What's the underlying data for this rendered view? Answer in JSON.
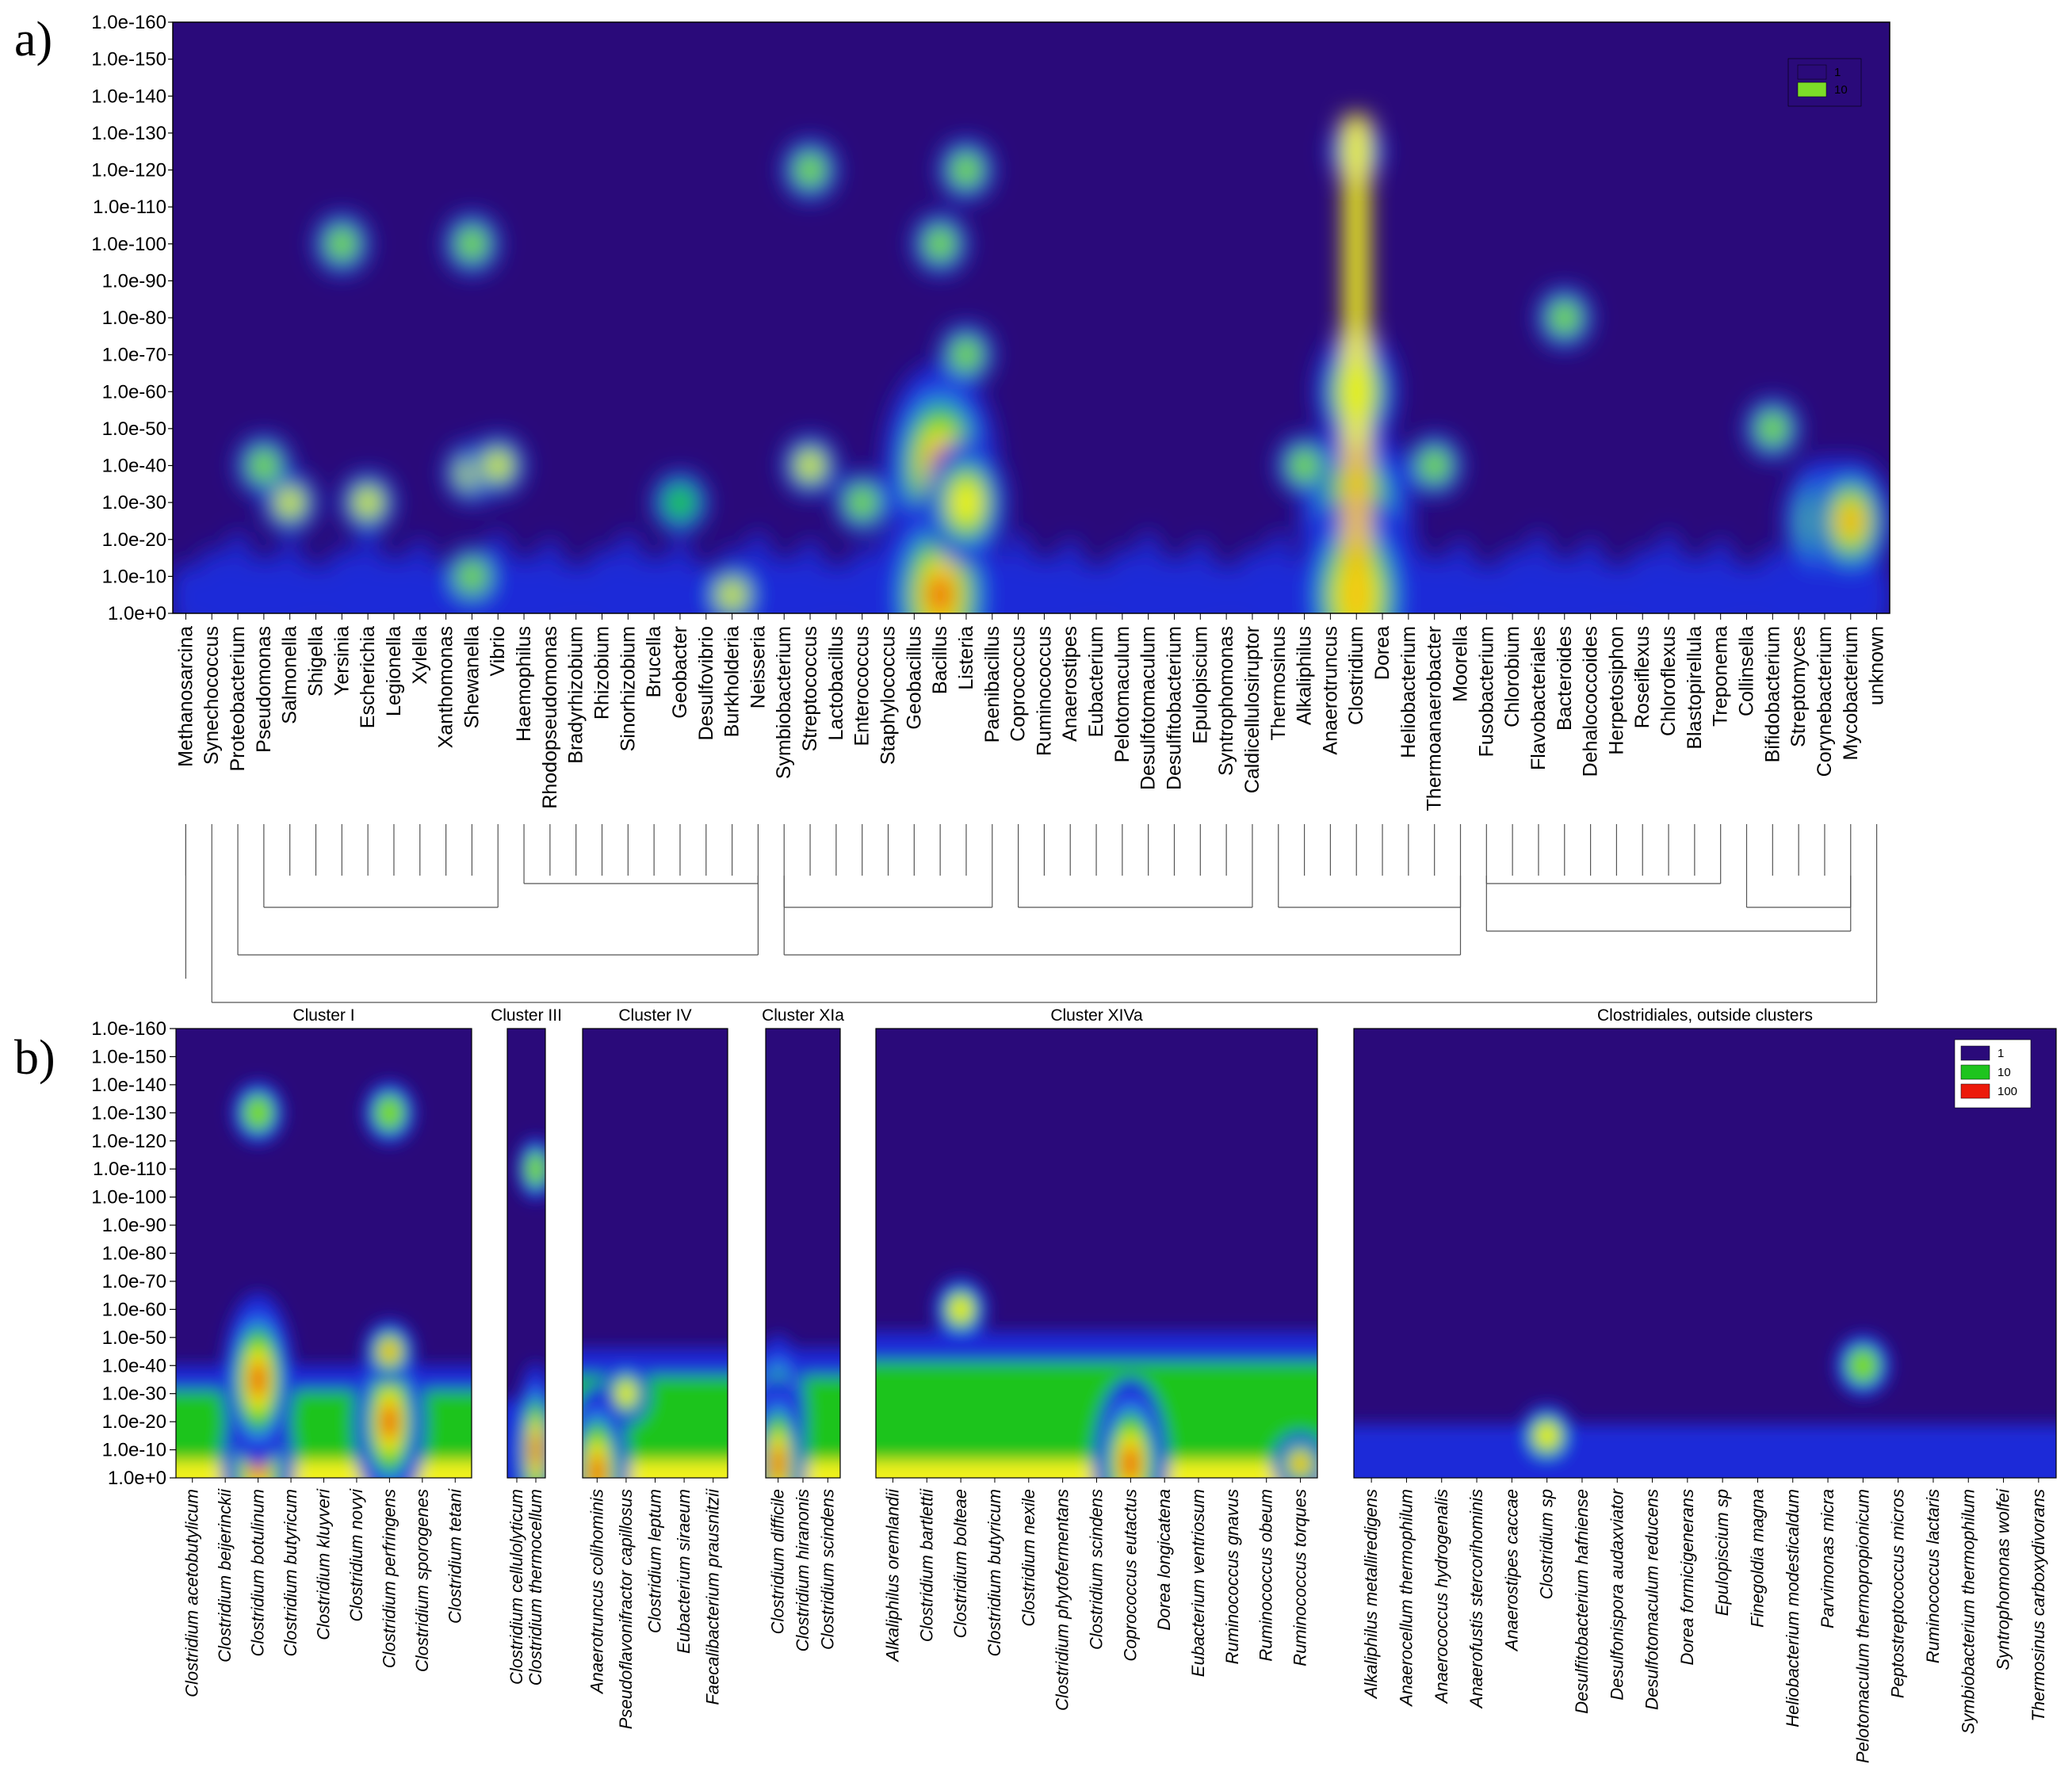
{
  "figure": {
    "panel_labels": [
      "a)",
      "b)"
    ]
  },
  "colors": {
    "low": "#2a0a7a",
    "blue": "#1a2ad8",
    "blue_light": "#2a6af0",
    "green": "#1ec41e",
    "green_light": "#7cdc28",
    "yellow": "#f2f21a",
    "orange": "#f5a50f",
    "red": "#ec1a0a",
    "dendrogram": "#555555"
  },
  "chart_data": [
    {
      "id": "a",
      "type": "heatmap",
      "title": "",
      "xlabel": "",
      "ylabel": "",
      "y_ticks": [
        "1.0e+0",
        "1.0e-10",
        "1.0e-20",
        "1.0e-30",
        "1.0e-40",
        "1.0e-50",
        "1.0e-60",
        "1.0e-70",
        "1.0e-80",
        "1.0e-90",
        "1.0e-100",
        "1.0e-110",
        "1.0e-120",
        "1.0e-130",
        "1.0e-140",
        "1.0e-150",
        "1.0e-160"
      ],
      "categories": [
        "Methanosarcina",
        "Synechococcus",
        "Proteobacterium",
        "Pseudomonas",
        "Salmonella",
        "Shigella",
        "Yersinia",
        "Escherichia",
        "Legionella",
        "Xylella",
        "Xanthomonas",
        "Shewanella",
        "Vibrio",
        "Haemophilus",
        "Rhodopseudomonas",
        "Bradyrhizobium",
        "Rhizobium",
        "Sinorhizobium",
        "Brucella",
        "Geobacter",
        "Desulfovibrio",
        "Burkholderia",
        "Neisseria",
        "Symbiobacterium",
        "Streptococcus",
        "Lactobacillus",
        "Enterococcus",
        "Staphylococcus",
        "Geobacillus",
        "Bacillus",
        "Listeria",
        "Paenibacillus",
        "Coprococcus",
        "Ruminococcus",
        "Anaerostipes",
        "Eubacterium",
        "Pelotomaculum",
        "Desulfotomaculum",
        "Desulfitobacterium",
        "Epulopiscium",
        "Syntrophomonas",
        "Caldicellulosiruptor",
        "Thermosinus",
        "Alkaliphilus",
        "Anaerotruncus",
        "Clostridium",
        "Dorea",
        "Heliobacterium",
        "Thermoanaerobacter",
        "Moorella",
        "Fusobacterium",
        "Chlorobium",
        "Flavobacteriales",
        "Bacteroides",
        "Dehalococcoides",
        "Herpetosiphon",
        "Roseiflexus",
        "Chloroflexus",
        "Blastopirellula",
        "Treponema",
        "Collinsella",
        "Bifidobacterium",
        "Streptomyces",
        "Corynebacterium",
        "Mycobacterium",
        "unknown"
      ],
      "legend": [
        {
          "label": "1",
          "color": "#2a0a7a"
        },
        {
          "label": "10",
          "color": "#7cdc28"
        }
      ],
      "legend_position": "top-right",
      "dendrogram": true,
      "hotspots": [
        {
          "category": "Clostridium",
          "evalue_exp": -25,
          "level": 100
        },
        {
          "category": "Clostridium",
          "evalue_exp": -5,
          "level": 100
        },
        {
          "category": "Clostridium",
          "evalue_exp": -60,
          "level": 40
        },
        {
          "category": "Clostridium",
          "evalue_exp": -125,
          "level": 12
        },
        {
          "category": "Bacillus",
          "evalue_exp": -40,
          "level": 60
        },
        {
          "category": "Bacillus",
          "evalue_exp": -5,
          "level": 80
        },
        {
          "category": "Listeria",
          "evalue_exp": -30,
          "level": 25
        },
        {
          "category": "Listeria",
          "evalue_exp": -70,
          "level": 12
        },
        {
          "category": "Listeria",
          "evalue_exp": -120,
          "level": 12
        },
        {
          "category": "Bacillus",
          "evalue_exp": -100,
          "level": 10
        },
        {
          "category": "Corynebacterium",
          "evalue_exp": -25,
          "level": 40
        },
        {
          "category": "Mycobacterium",
          "evalue_exp": -25,
          "level": 40
        },
        {
          "category": "Shewanella",
          "evalue_exp": -38,
          "level": 18
        },
        {
          "category": "Vibrio",
          "evalue_exp": -40,
          "level": 15
        },
        {
          "category": "Shewanella",
          "evalue_exp": -10,
          "level": 12
        },
        {
          "category": "Shewanella",
          "evalue_exp": -100,
          "level": 12
        },
        {
          "category": "Yersinia",
          "evalue_exp": -100,
          "level": 12
        },
        {
          "category": "Streptococcus",
          "evalue_exp": -120,
          "level": 12
        },
        {
          "category": "Streptococcus",
          "evalue_exp": -40,
          "level": 15
        },
        {
          "category": "Burkholderia",
          "evalue_exp": -5,
          "level": 15
        },
        {
          "category": "Salmonella",
          "evalue_exp": -30,
          "level": 15
        },
        {
          "category": "Escherichia",
          "evalue_exp": -30,
          "level": 15
        },
        {
          "category": "Pseudomonas",
          "evalue_exp": -40,
          "level": 12
        },
        {
          "category": "Bacteroides",
          "evalue_exp": -80,
          "level": 12
        },
        {
          "category": "Thermoanaerobacter",
          "evalue_exp": -40,
          "level": 12
        },
        {
          "category": "Bifidobacterium",
          "evalue_exp": -50,
          "level": 10
        },
        {
          "category": "Alkaliphilus",
          "evalue_exp": -40,
          "level": 12
        },
        {
          "category": "Enterococcus",
          "evalue_exp": -30,
          "level": 10
        },
        {
          "category": "Geobacter",
          "evalue_exp": -30,
          "level": 8
        }
      ]
    },
    {
      "id": "b",
      "type": "heatmap",
      "title": "",
      "xlabel": "",
      "ylabel": "",
      "y_ticks": [
        "1.0e+0",
        "1.0e-10",
        "1.0e-20",
        "1.0e-30",
        "1.0e-40",
        "1.0e-50",
        "1.0e-60",
        "1.0e-70",
        "1.0e-80",
        "1.0e-90",
        "1.0e-100",
        "1.0e-110",
        "1.0e-120",
        "1.0e-130",
        "1.0e-140",
        "1.0e-150",
        "1.0e-160"
      ],
      "legend": [
        {
          "label": "1",
          "color": "#2a0a7a"
        },
        {
          "label": "10",
          "color": "#1ec41e"
        },
        {
          "label": "100",
          "color": "#ec1a0a"
        }
      ],
      "legend_position": "top-right",
      "clusters": [
        {
          "title": "Cluster I",
          "categories": [
            "Clostridium acetobutylicum",
            "Clostridium beijerinckii",
            "Clostridium botulinum",
            "Clostridium butyricum",
            "Clostridium kluyveri",
            "Clostridium novyi",
            "Clostridium perfringens",
            "Clostridium sporogenes",
            "Clostridium tetani"
          ],
          "hotspots": [
            {
              "category": "Clostridium botulinum",
              "evalue_exp": -5,
              "level": 100
            },
            {
              "category": "Clostridium botulinum",
              "evalue_exp": -35,
              "level": 60
            },
            {
              "category": "Clostridium perfringens",
              "evalue_exp": -20,
              "level": 100
            },
            {
              "category": "Clostridium perfringens",
              "evalue_exp": -45,
              "level": 50
            },
            {
              "category": "Clostridium botulinum",
              "evalue_exp": -130,
              "level": 12
            },
            {
              "category": "Clostridium perfringens",
              "evalue_exp": -130,
              "level": 12
            }
          ],
          "floor": 10
        },
        {
          "title": "Cluster III",
          "categories": [
            "Clostridium cellulolyticum",
            "Clostridium thermocellum"
          ],
          "hotspots": [
            {
              "category": "Clostridium thermocellum",
              "evalue_exp": -10,
              "level": 100
            },
            {
              "category": "Clostridium thermocellum",
              "evalue_exp": -110,
              "level": 12
            }
          ],
          "floor": 6
        },
        {
          "title": "Cluster IV",
          "categories": [
            "Anaerotruncus colihominis",
            "Pseudoflavonifractor capillosus",
            "Clostridium leptum",
            "Eubacterium siraeum",
            "Faecalibacterium prausnitzii"
          ],
          "hotspots": [
            {
              "category": "Pseudoflavonifractor capillosus",
              "evalue_exp": -30,
              "level": 25
            },
            {
              "category": "Anaerotruncus colihominis",
              "evalue_exp": -2,
              "level": 60
            }
          ],
          "floor": 12
        },
        {
          "title": "Cluster XIa",
          "categories": [
            "Clostridium difficile",
            "Clostridium hiranonis",
            "Clostridium scindens"
          ],
          "hotspots": [
            {
              "category": "Clostridium difficile",
              "evalue_exp": -20,
              "level": 100
            },
            {
              "category": "Clostridium difficile",
              "evalue_exp": -5,
              "level": 100
            }
          ],
          "floor": 12
        },
        {
          "title": "Cluster XIVa",
          "categories": [
            "Alkaliphilus oremlandii",
            "Clostridium bartlettii",
            "Clostridium bolteae",
            "Clostridium butyricum",
            "Clostridium nexile",
            "Clostridium phytofermentans",
            "Clostridium scindens",
            "Coprococcus eutactus",
            "Dorea longicatena",
            "Eubacterium ventriosum",
            "Ruminococcus gnavus",
            "Ruminococcus obeum",
            "Ruminococcus torques"
          ],
          "hotspots": [
            {
              "category": "Coprococcus eutactus",
              "evalue_exp": -5,
              "level": 60
            },
            {
              "category": "Ruminococcus torques",
              "evalue_exp": -5,
              "level": 50
            },
            {
              "category": "Clostridium bolteae",
              "evalue_exp": -60,
              "level": 14
            }
          ],
          "floor": 14
        },
        {
          "title": "Clostridiales, outside clusters",
          "categories": [
            "Alkaliphilus metalliredigens",
            "Anaerocellum thermophilum",
            "Anaerococcus hydrogenalis",
            "Anaerofustis stercorihominis",
            "Anaerostipes caccae",
            "Clostridium sp",
            "Desulfitobacterium hafniense",
            "Desulfonispora audaxviator",
            "Desulfotomaculum reducens",
            "Dorea formicigenerans",
            "Epulopiscium sp",
            "Finegoldia magna",
            "Heliobacterium modesticaldum",
            "Parvimonas micra",
            "Pelotomaculum thermopropionicum",
            "Peptostreptococcus micros",
            "Ruminococcus lactaris",
            "Symbiobacterium thermophilum",
            "Syntrophomonas wolfei",
            "Thermosinus carboxydivorans"
          ],
          "hotspots": [
            {
              "category": "Clostridium sp",
              "evalue_exp": -15,
              "level": 15
            },
            {
              "category": "Pelotomaculum thermopropionicum",
              "evalue_exp": -40,
              "level": 12
            }
          ],
          "floor": 3
        }
      ]
    }
  ]
}
